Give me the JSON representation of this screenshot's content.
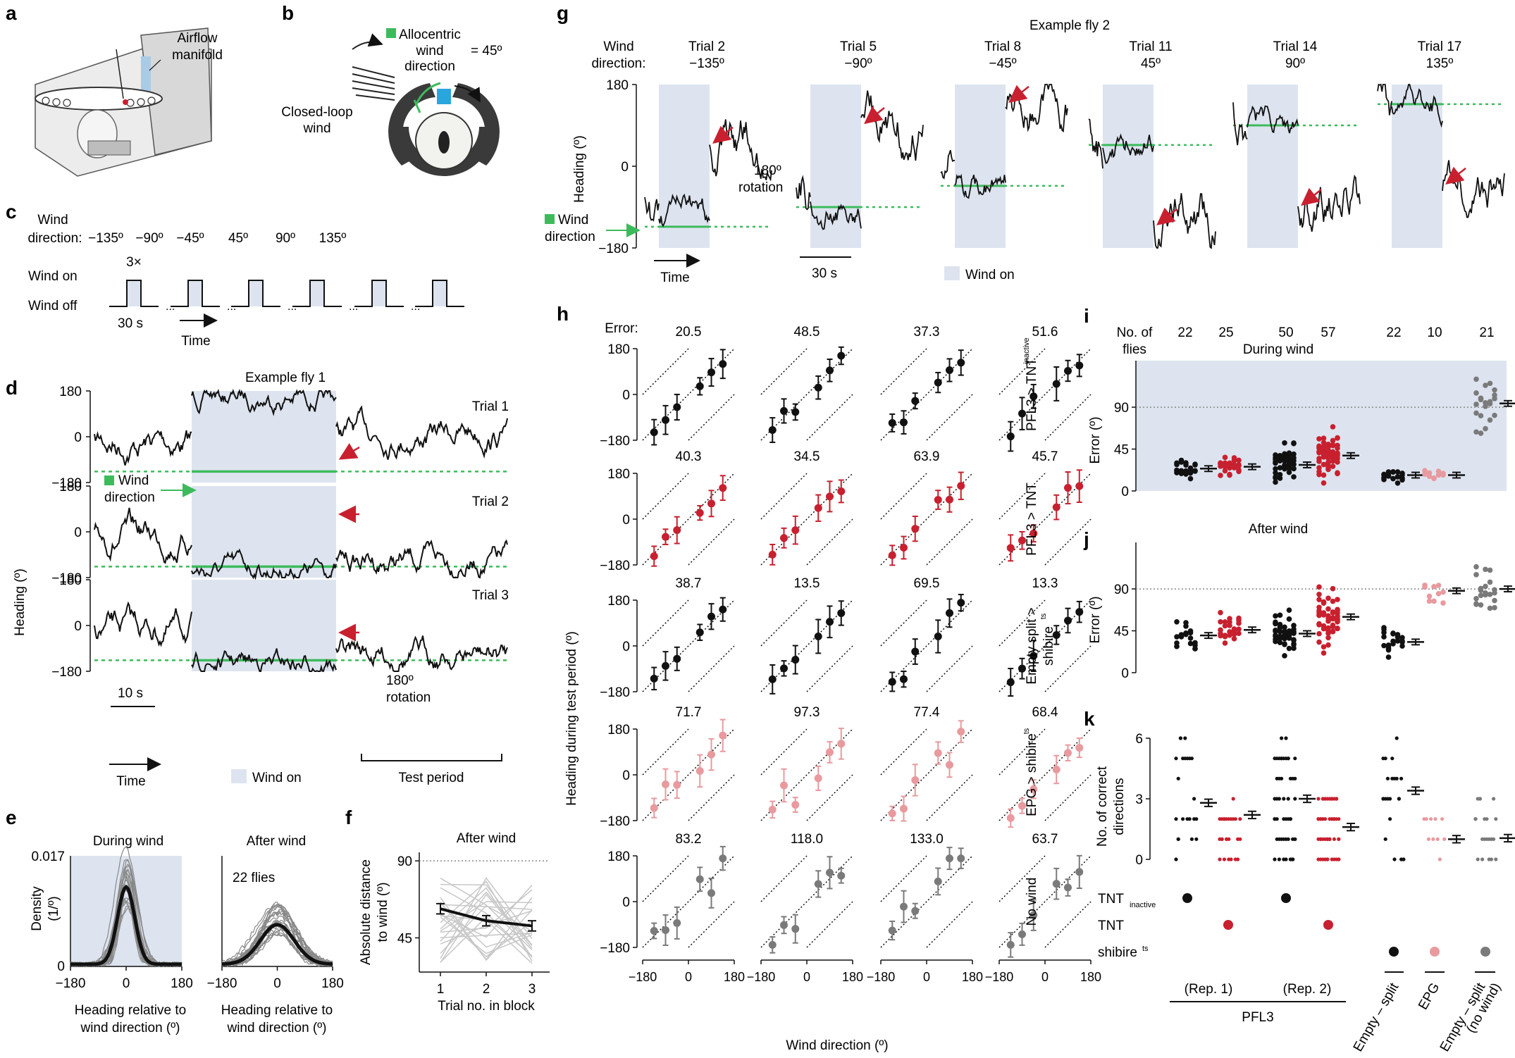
{
  "panels": {
    "a": {
      "letter": "a",
      "label": "Airflow\nmanifold"
    },
    "b": {
      "letter": "b",
      "allocentric": "Allocentric",
      "wind": "wind",
      "direction": "direction",
      "eq": "= 45º",
      "closed_loop": "Closed-loop",
      "wind2": "wind"
    },
    "c": {
      "letter": "c",
      "wind_dir_label1": "Wind",
      "wind_dir_label2": "direction:",
      "directions": [
        "−135º",
        "−90º",
        "−45º",
        "45º",
        "90º",
        "135º"
      ],
      "repeat": "3×",
      "wind_on": "Wind on",
      "wind_off": "Wind off",
      "duration": "30 s",
      "time": "Time"
    },
    "d": {
      "letter": "d",
      "title": "Example fly 1",
      "trials": [
        "Trial 1",
        "Trial 2",
        "Trial 3"
      ],
      "ylabel": "Heading (º)",
      "yticks": [
        "180",
        "0",
        "−180"
      ],
      "wind_dir1": "Wind",
      "wind_dir2": "direction",
      "rotation1": "180º",
      "rotation2": "rotation",
      "scale": "10 s",
      "time": "Time",
      "wind_on": "Wind on",
      "test_period": "Test period"
    },
    "e": {
      "letter": "e",
      "during": "During wind",
      "after": "After wind",
      "ylabel1": "Density",
      "ylabel2": "(1/º)",
      "ytop": "0.017",
      "ybottom": "0",
      "xticks": [
        "−180",
        "0",
        "180"
      ],
      "flies": "22 flies",
      "xlabel1": "Heading relative to",
      "xlabel2": "wind direction (º)"
    },
    "f": {
      "letter": "f",
      "title": "After wind",
      "ylabel1": "Absolute distance",
      "ylabel2": "to wind (º)",
      "yticks": [
        "90",
        "45"
      ],
      "xticks": [
        "1",
        "2",
        "3"
      ],
      "xlabel": "Trial no. in block"
    },
    "g": {
      "letter": "g",
      "title": "Example fly 2",
      "wind_dir1": "Wind",
      "wind_dir2": "direction:",
      "trials": [
        "Trial 2",
        "Trial 5",
        "Trial 8",
        "Trial 11",
        "Trial 14",
        "Trial 17"
      ],
      "angles": [
        "−135º",
        "−90º",
        "−45º",
        "45º",
        "90º",
        "135º"
      ],
      "ylabel": "Heading (º)",
      "yticks": [
        "180",
        "0",
        "−180"
      ],
      "rotation1": "180º",
      "rotation2": "rotation",
      "wind_dir_marker1": "Wind",
      "wind_dir_marker2": "direction",
      "time": "Time",
      "scale": "30 s",
      "wind_on": "Wind on"
    },
    "h": {
      "letter": "h",
      "error_label": "Error:",
      "ylabel": "Heading during test period (º)",
      "xlabel": "Wind direction (º)",
      "yticks": [
        "180",
        "0",
        "−180"
      ],
      "xticks": [
        "−180",
        "0",
        "180"
      ],
      "rows": [
        {
          "label": "PFL3 > TNT",
          "sub": "inactive",
          "errors": [
            "20.5",
            "48.5",
            "37.3",
            "51.6"
          ]
        },
        {
          "label": "PFL3 > TNT",
          "sub": "",
          "errors": [
            "40.3",
            "34.5",
            "63.9",
            "45.7"
          ]
        },
        {
          "label": "Empty split >",
          "label2": "shibire",
          "sub": "ts",
          "errors": [
            "38.7",
            "13.5",
            "69.5",
            "13.3"
          ]
        },
        {
          "label": "EPG > shibire",
          "sub": "ts",
          "errors": [
            "71.7",
            "97.3",
            "77.4",
            "68.4"
          ]
        },
        {
          "label": "No wind",
          "sub": "",
          "errors": [
            "83.2",
            "118.0",
            "133.0",
            "63.7"
          ]
        }
      ]
    },
    "i": {
      "letter": "i",
      "noflies1": "No. of",
      "noflies2": "flies",
      "counts": [
        "22",
        "25",
        "50",
        "57",
        "22",
        "10",
        "21"
      ],
      "title": "During wind",
      "ylabel": "Error (º)",
      "yticks": [
        "90",
        "45",
        "0"
      ]
    },
    "j": {
      "letter": "j",
      "title": "After wind",
      "ylabel": "Error (º)",
      "yticks": [
        "90",
        "45",
        "0"
      ]
    },
    "k": {
      "letter": "k",
      "ylabel1": "No. of correct",
      "ylabel2": "directions",
      "yticks": [
        "6",
        "3",
        "0"
      ],
      "tnt_inactive": "TNT",
      "tnt_inactive_sub": "inactive",
      "tnt": "TNT",
      "shibire": "shibire",
      "shibire_sub": "ts",
      "rep1": "(Rep. 1)",
      "rep2": "(Rep. 2)",
      "pfl3": "PFL3",
      "empty_split": "Empty – split",
      "epg": "EPG",
      "empty_split_nowind1": "Empty – split",
      "empty_split_nowind2": "(no wind)"
    }
  },
  "colors": {
    "wind_on": "#dde4ef",
    "green": "#3dbb5c",
    "red": "#c8202f",
    "pink": "#e89a9e",
    "gray": "#7a7a7a",
    "black": "#111111"
  }
}
